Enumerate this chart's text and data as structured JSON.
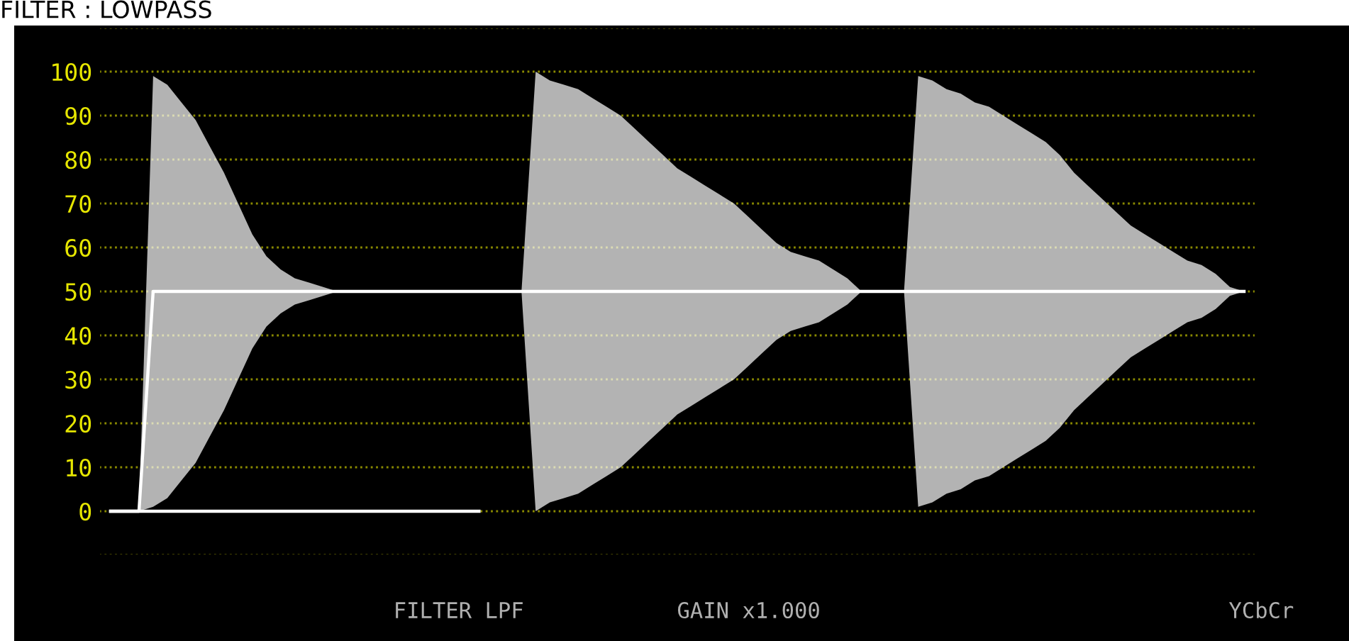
{
  "chart_data": {
    "type": "line",
    "title": "FILTER : LOWPASS",
    "categories": [
      null,
      null,
      null,
      null,
      null,
      null,
      null,
      null,
      null,
      null,
      null,
      null,
      null,
      null,
      null,
      null,
      null,
      null,
      null,
      null,
      null,
      null,
      null,
      null,
      null,
      null,
      null,
      null,
      null,
      null,
      null,
      null,
      null,
      null,
      null,
      null,
      null,
      null,
      null,
      null,
      null,
      null,
      null,
      null,
      null,
      null,
      null,
      null,
      null,
      null,
      null,
      null,
      null,
      null,
      null,
      null,
      null,
      null,
      null,
      null,
      null,
      null,
      null,
      null,
      null,
      null,
      null,
      null,
      null,
      null,
      null,
      null,
      null,
      null,
      null,
      null,
      null,
      null,
      null,
      null,
      null
    ],
    "series": [
      {
        "color": "#ffffff",
        "values": [
          0,
          0,
          0,
          50,
          50,
          50,
          50,
          50,
          50,
          50,
          50,
          50,
          50,
          50,
          50,
          50,
          50,
          50,
          50,
          50,
          50,
          50,
          50,
          50,
          50,
          50,
          50,
          50,
          50,
          50,
          50,
          50,
          50,
          50,
          50,
          50,
          50,
          50,
          50,
          50,
          50,
          50,
          50,
          50,
          50,
          50,
          50,
          50,
          50,
          50,
          50,
          50,
          50,
          50,
          50,
          50,
          50,
          50,
          50,
          50,
          50,
          50,
          50,
          50,
          50,
          50,
          50,
          50,
          50,
          50,
          50,
          50,
          50,
          50,
          50,
          50,
          50,
          50,
          50,
          50,
          50
        ],
        "upper": [
          0,
          0,
          0,
          99,
          97,
          93,
          89,
          83,
          77,
          70,
          63,
          58,
          55,
          53,
          52,
          51,
          50,
          50,
          50,
          50,
          50,
          50,
          50,
          50,
          50,
          50,
          50,
          50,
          50,
          50,
          100,
          98,
          97,
          96,
          94,
          92,
          90,
          87,
          84,
          81,
          78,
          76,
          74,
          72,
          70,
          67,
          64,
          61,
          59,
          58,
          57,
          55,
          53,
          50,
          50,
          50,
          50,
          99,
          98,
          96,
          95,
          93,
          92,
          90,
          88,
          86,
          84,
          81,
          77,
          74,
          71,
          68,
          65,
          63,
          61,
          59,
          57,
          56,
          54,
          51,
          50
        ],
        "lower": [
          0,
          0,
          0,
          1,
          3,
          7,
          11,
          17,
          23,
          30,
          37,
          42,
          45,
          47,
          48,
          49,
          50,
          50,
          50,
          50,
          50,
          50,
          50,
          50,
          50,
          50,
          50,
          50,
          50,
          50,
          0,
          2,
          3,
          4,
          6,
          8,
          10,
          13,
          16,
          19,
          22,
          24,
          26,
          28,
          30,
          33,
          36,
          39,
          41,
          42,
          43,
          45,
          47,
          50,
          50,
          50,
          50,
          1,
          2,
          4,
          5,
          7,
          8,
          10,
          12,
          14,
          16,
          19,
          23,
          26,
          29,
          32,
          35,
          37,
          39,
          41,
          43,
          44,
          46,
          49,
          50
        ]
      },
      {
        "color": "#ffffff",
        "values": [
          0,
          0,
          0,
          0,
          0,
          0,
          0,
          0,
          0,
          0,
          0,
          0,
          0,
          0,
          0,
          0,
          0,
          0,
          0,
          0,
          0,
          0,
          0,
          0,
          0,
          0,
          0,
          null,
          null,
          null,
          null,
          null,
          null,
          null,
          null,
          null,
          null,
          null,
          null,
          null,
          null,
          null,
          null,
          null,
          null,
          null,
          null,
          null,
          null,
          null,
          null,
          null,
          null,
          null,
          null,
          null,
          null,
          null,
          null,
          null,
          null,
          null,
          null,
          null,
          null,
          null,
          null,
          null,
          null,
          null,
          null,
          null,
          null,
          null,
          null,
          null,
          null,
          null,
          null,
          null,
          null
        ]
      }
    ],
    "ylim": [
      -10,
      110
    ],
    "yticks": [
      {
        "value": -10,
        "label": null
      },
      0,
      10,
      20,
      30,
      40,
      50,
      60,
      70,
      80,
      90,
      100,
      {
        "value": 110,
        "label": null
      }
    ],
    "tick_labels": "y",
    "grid": "y",
    "legend": false,
    "annotations": [
      "FILTER LPF",
      "GAIN x1.000",
      "YCbCr"
    ]
  }
}
